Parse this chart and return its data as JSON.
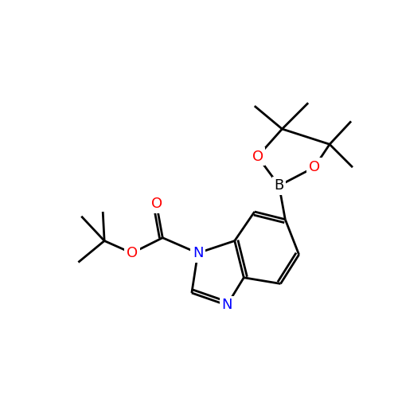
{
  "background_color": "#ffffff",
  "bond_color": "#000000",
  "atom_colors": {
    "N": "#0000ff",
    "O": "#ff0000",
    "B": "#000000",
    "C": "#000000"
  },
  "figsize": [
    5.0,
    5.0
  ],
  "dpi": 100
}
